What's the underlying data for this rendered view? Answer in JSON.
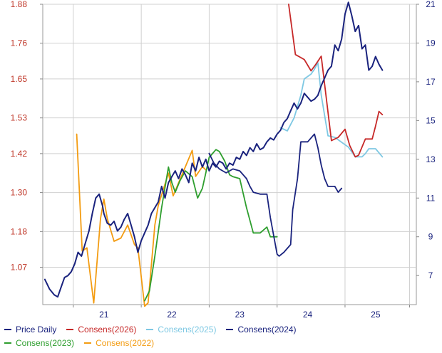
{
  "chart_data": {
    "type": "line",
    "title": "",
    "xlabel": "",
    "ylabel": "",
    "x_ticks": [
      "21",
      "22",
      "23",
      "24",
      "25"
    ],
    "xlim": [
      20.1,
      25.6
    ],
    "left_axis": {
      "ticks": [
        "1.07",
        "1.18",
        "1.30",
        "1.42",
        "1.53",
        "1.65",
        "1.76",
        "1.88"
      ],
      "ylim": [
        0.955,
        1.88
      ]
    },
    "right_axis": {
      "ticks": [
        "7",
        "9",
        "11",
        "13",
        "15",
        "17",
        "19",
        "21"
      ],
      "ylim": [
        5.5,
        21
      ]
    },
    "grid": true,
    "legend_position": "bottom",
    "colors": {
      "price": "#1a237e",
      "c2026": "#c62828",
      "c2025": "#7ec8e3",
      "c2024": "#1a237e",
      "c2023": "#2e9e2e",
      "c2022": "#f39c12",
      "left_ticks": "#c0392b",
      "right_ticks": "#1a237e"
    },
    "series": [
      {
        "key": "price",
        "name": "Price Daily",
        "axis": "right",
        "color": "#1a237e",
        "width": 2.0,
        "x": [
          20.13,
          20.2,
          20.27,
          20.32,
          20.37,
          20.42,
          20.47,
          20.52,
          20.57,
          20.62,
          20.67,
          20.72,
          20.78,
          20.83,
          20.88,
          20.93,
          20.98,
          21.0,
          21.05,
          21.1,
          21.15,
          21.2,
          21.25,
          21.3,
          21.35,
          21.4,
          21.45,
          21.5,
          21.55,
          21.6,
          21.65,
          21.7,
          21.75,
          21.8,
          21.85,
          21.9,
          21.95,
          22.0,
          22.05,
          22.1,
          22.15,
          22.2,
          22.25,
          22.3,
          22.35,
          22.4,
          22.45,
          22.5,
          22.55,
          22.6,
          22.65,
          22.7,
          22.75,
          22.8,
          22.85,
          22.9,
          22.95,
          23.0,
          23.05,
          23.1,
          23.15,
          23.2,
          23.25,
          23.3,
          23.35,
          23.4,
          23.45,
          23.5,
          23.55,
          23.6,
          23.65,
          23.7,
          23.75,
          23.8,
          23.85,
          23.9,
          23.95,
          24.0,
          24.05,
          24.1,
          24.15,
          24.2,
          24.25,
          24.3,
          24.35,
          24.4,
          24.45,
          24.5,
          24.55,
          24.6,
          24.65,
          24.7,
          24.75,
          24.8,
          24.85,
          24.9,
          24.95,
          25.0,
          25.05,
          25.1
        ],
        "y": [
          6.8,
          6.3,
          6.0,
          5.9,
          6.4,
          6.9,
          7.0,
          7.2,
          7.6,
          8.2,
          8.0,
          8.6,
          9.3,
          10.2,
          11.0,
          11.2,
          10.6,
          10.2,
          9.7,
          9.6,
          9.8,
          9.3,
          9.5,
          9.9,
          10.2,
          9.6,
          9.0,
          8.2,
          8.8,
          9.2,
          9.6,
          10.2,
          10.5,
          10.8,
          11.6,
          11.0,
          11.8,
          12.1,
          12.4,
          12.0,
          12.5,
          12.2,
          11.8,
          12.8,
          12.4,
          13.1,
          12.6,
          13.0,
          12.4,
          12.8,
          12.6,
          12.9,
          12.8,
          12.5,
          12.8,
          12.7,
          13.1,
          13.0,
          13.4,
          13.2,
          13.6,
          13.4,
          13.8,
          13.5,
          13.6,
          13.9,
          14.1,
          14.0,
          14.3,
          14.5,
          14.9,
          15.1,
          15.5,
          15.9,
          15.6,
          15.9,
          16.4,
          16.2,
          16.0,
          16.1,
          16.3,
          16.8,
          17.2,
          17.6,
          17.8,
          18.9,
          18.6,
          19.2,
          20.5,
          21.1,
          20.4,
          19.6,
          19.9,
          18.7,
          18.9,
          17.6,
          17.8,
          18.3,
          17.9,
          17.6
        ]
      },
      {
        "key": "c2026",
        "name": "Consens(2026)",
        "axis": "left",
        "color": "#c62828",
        "width": 1.8,
        "x": [
          23.72,
          23.82,
          23.95,
          24.05,
          24.12,
          24.2,
          24.35,
          24.45,
          24.55,
          24.62,
          24.7,
          24.75,
          24.85,
          24.95,
          25.0,
          25.05,
          25.1
        ],
        "y": [
          1.88,
          1.725,
          1.71,
          1.675,
          1.695,
          1.72,
          1.46,
          1.47,
          1.495,
          1.445,
          1.41,
          1.415,
          1.465,
          1.465,
          1.505,
          1.55,
          1.54
        ]
      },
      {
        "key": "c2025",
        "name": "Consens(2025)",
        "axis": "left",
        "color": "#7ec8e3",
        "width": 1.8,
        "x": [
          23.6,
          23.7,
          23.8,
          23.9,
          23.95,
          24.05,
          24.1,
          24.15,
          24.2,
          24.3,
          24.4,
          24.5,
          24.6,
          24.7,
          24.8,
          24.85,
          24.9,
          25.0,
          25.1
        ],
        "y": [
          1.5,
          1.49,
          1.53,
          1.6,
          1.65,
          1.665,
          1.68,
          1.7,
          1.6,
          1.475,
          1.47,
          1.455,
          1.44,
          1.41,
          1.41,
          1.42,
          1.435,
          1.435,
          1.41
        ]
      },
      {
        "key": "c2024",
        "name": "Consens(2024)",
        "axis": "right",
        "color": "#1a237e",
        "width": 1.8,
        "x": [
          22.55,
          22.62,
          22.7,
          22.8,
          22.9,
          23.0,
          23.1,
          23.15,
          23.2,
          23.3,
          23.4,
          23.45,
          23.55,
          23.58,
          23.65,
          23.75,
          23.78,
          23.85,
          23.9,
          24.0,
          24.1,
          24.15,
          24.2,
          24.25,
          24.3,
          24.4,
          24.45,
          24.5
        ],
        "y": [
          13.3,
          12.8,
          12.5,
          12.3,
          12.5,
          12.4,
          12.0,
          11.6,
          11.3,
          11.2,
          11.2,
          10.0,
          8.1,
          8.0,
          8.2,
          8.6,
          10.4,
          12.0,
          13.9,
          13.9,
          14.3,
          13.6,
          12.7,
          12.0,
          11.6,
          11.6,
          11.3,
          11.5
        ]
      },
      {
        "key": "c2023",
        "name": "Consens(2023)",
        "axis": "right",
        "color": "#2e9e2e",
        "width": 1.8,
        "x": [
          21.6,
          21.67,
          21.75,
          21.85,
          21.95,
          22.0,
          22.05,
          22.12,
          22.2,
          22.3,
          22.38,
          22.45,
          22.5,
          22.55,
          22.6,
          22.65,
          22.7,
          22.78,
          22.85,
          22.9,
          23.0,
          23.1,
          23.2,
          23.25,
          23.3,
          23.4,
          23.45,
          23.55
        ],
        "y": [
          5.7,
          6.2,
          8.0,
          10.5,
          12.6,
          11.8,
          11.3,
          11.9,
          12.4,
          12.1,
          11.0,
          11.5,
          12.3,
          13.1,
          13.3,
          13.5,
          13.4,
          12.9,
          12.2,
          12.1,
          12.0,
          10.5,
          9.2,
          9.2,
          9.2,
          9.5,
          9.0,
          9.0
        ]
      },
      {
        "key": "c2022",
        "name": "Consens(2022)",
        "axis": "left",
        "color": "#f39c12",
        "width": 1.8,
        "x": [
          20.6,
          20.68,
          20.75,
          20.85,
          20.95,
          21.0,
          21.05,
          21.15,
          21.25,
          21.35,
          21.45,
          21.5,
          21.6,
          21.65,
          21.75,
          21.8,
          21.95,
          22.02,
          22.1,
          22.2,
          22.3,
          22.35,
          22.45,
          22.5
        ],
        "y": [
          1.48,
          1.12,
          1.13,
          0.96,
          1.22,
          1.28,
          1.22,
          1.15,
          1.16,
          1.2,
          1.14,
          1.13,
          0.95,
          0.96,
          1.2,
          1.26,
          1.36,
          1.29,
          1.33,
          1.38,
          1.43,
          1.35,
          1.38,
          1.37
        ]
      }
    ]
  },
  "legend": [
    {
      "label": "Price Daily",
      "color": "#1a237e"
    },
    {
      "label": "Consens(2026)",
      "color": "#c62828"
    },
    {
      "label": "Consens(2025)",
      "color": "#7ec8e3"
    },
    {
      "label": "Consens(2024)",
      "color": "#1a237e"
    },
    {
      "label": "Consens(2023)",
      "color": "#2e9e2e"
    },
    {
      "label": "Consens(2022)",
      "color": "#f39c12"
    }
  ]
}
